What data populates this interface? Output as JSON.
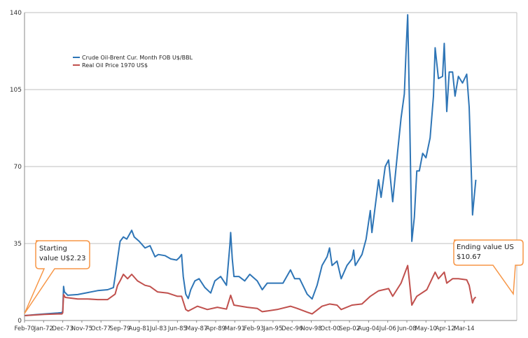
{
  "chart_data": {
    "type": "line",
    "title": "",
    "xlabel": "",
    "ylabel": "",
    "ylim": [
      0,
      140
    ],
    "yticks": [
      0,
      35,
      70,
      105,
      140
    ],
    "grid": true,
    "legend_position": "top-left",
    "x_tick_labels": [
      "Feb-70",
      "Jan-72",
      "Dec-73",
      "Nov-75",
      "Oct-77",
      "Sep-79",
      "Aug-81",
      "Jul-83",
      "Jun-85",
      "May-87",
      "Apr-89",
      "Mar-91",
      "Feb-93",
      "Jan-95",
      "Dec-96",
      "Nov-98",
      "Oct-00",
      "Sep-02",
      "Aug-04",
      "Jul-06",
      "Jun-08",
      "May-10",
      "Apr-12",
      "Mar-14"
    ],
    "series": [
      {
        "name": "Crude Oil-Brent Cur. Month FOB U$/BBL",
        "color": "#2e75b6",
        "points": [
          [
            "1970-02",
            2.23
          ],
          [
            "1971-02",
            2.6
          ],
          [
            "1972-02",
            3.0
          ],
          [
            "1973-06",
            3.4
          ],
          [
            "1973-11",
            3.6
          ],
          [
            "1973-12",
            4.3
          ],
          [
            "1974-01",
            15.5
          ],
          [
            "1974-02",
            13.0
          ],
          [
            "1974-06",
            11.5
          ],
          [
            "1975-06",
            11.8
          ],
          [
            "1976-06",
            12.7
          ],
          [
            "1977-06",
            13.6
          ],
          [
            "1978-06",
            14.0
          ],
          [
            "1979-01",
            15.0
          ],
          [
            "1979-03",
            20.0
          ],
          [
            "1979-06",
            28.0
          ],
          [
            "1979-09",
            36.0
          ],
          [
            "1980-01",
            38.0
          ],
          [
            "1980-05",
            37.0
          ],
          [
            "1980-11",
            41.0
          ],
          [
            "1981-02",
            38.0
          ],
          [
            "1981-08",
            36.0
          ],
          [
            "1982-03",
            33.0
          ],
          [
            "1982-09",
            34.0
          ],
          [
            "1983-03",
            29.0
          ],
          [
            "1983-07",
            30.0
          ],
          [
            "1984-03",
            29.5
          ],
          [
            "1984-10",
            28.0
          ],
          [
            "1985-05",
            27.5
          ],
          [
            "1985-08",
            28.5
          ],
          [
            "1985-11",
            30.0
          ],
          [
            "1986-01",
            20.0
          ],
          [
            "1986-04",
            12.0
          ],
          [
            "1986-07",
            10.0
          ],
          [
            "1986-10",
            14.0
          ],
          [
            "1987-03",
            18.0
          ],
          [
            "1987-08",
            19.0
          ],
          [
            "1988-03",
            15.0
          ],
          [
            "1988-10",
            12.5
          ],
          [
            "1989-03",
            18.0
          ],
          [
            "1989-10",
            20.0
          ],
          [
            "1990-05",
            16.0
          ],
          [
            "1990-09",
            34.0
          ],
          [
            "1990-10",
            40.0
          ],
          [
            "1990-12",
            28.0
          ],
          [
            "1991-02",
            20.0
          ],
          [
            "1991-08",
            20.0
          ],
          [
            "1992-03",
            18.0
          ],
          [
            "1992-09",
            21.0
          ],
          [
            "1993-06",
            18.0
          ],
          [
            "1993-12",
            14.0
          ],
          [
            "1994-06",
            17.0
          ],
          [
            "1995-06",
            17.0
          ],
          [
            "1996-01",
            17.0
          ],
          [
            "1996-10",
            23.0
          ],
          [
            "1997-03",
            19.0
          ],
          [
            "1997-09",
            19.0
          ],
          [
            "1998-06",
            12.0
          ],
          [
            "1998-12",
            9.8
          ],
          [
            "1999-06",
            16.0
          ],
          [
            "1999-12",
            25.0
          ],
          [
            "2000-06",
            29.0
          ],
          [
            "2000-09",
            33.0
          ],
          [
            "2000-12",
            25.0
          ],
          [
            "2001-06",
            27.0
          ],
          [
            "2001-11",
            19.0
          ],
          [
            "2002-06",
            25.0
          ],
          [
            "2002-12",
            28.0
          ],
          [
            "2003-02",
            32.0
          ],
          [
            "2003-04",
            25.0
          ],
          [
            "2003-12",
            30.0
          ],
          [
            "2004-05",
            37.0
          ],
          [
            "2004-10",
            50.0
          ],
          [
            "2004-12",
            40.0
          ],
          [
            "2005-08",
            64.0
          ],
          [
            "2005-11",
            56.0
          ],
          [
            "2006-04",
            70.0
          ],
          [
            "2006-08",
            73.0
          ],
          [
            "2007-01",
            54.0
          ],
          [
            "2007-07",
            77.0
          ],
          [
            "2007-11",
            92.0
          ],
          [
            "2008-03",
            103.0
          ],
          [
            "2008-05",
            122.0
          ],
          [
            "2008-07",
            139.0
          ],
          [
            "2008-09",
            100.0
          ],
          [
            "2008-12",
            36.0
          ],
          [
            "2009-03",
            47.0
          ],
          [
            "2009-06",
            68.0
          ],
          [
            "2009-09",
            68.0
          ],
          [
            "2010-01",
            76.0
          ],
          [
            "2010-05",
            74.0
          ],
          [
            "2010-10",
            83.0
          ],
          [
            "2011-02",
            102.0
          ],
          [
            "2011-04",
            124.0
          ],
          [
            "2011-08",
            110.0
          ],
          [
            "2012-01",
            111.0
          ],
          [
            "2012-03",
            126.0
          ],
          [
            "2012-06",
            95.0
          ],
          [
            "2012-09",
            113.0
          ],
          [
            "2013-01",
            113.0
          ],
          [
            "2013-04",
            102.0
          ],
          [
            "2013-08",
            111.0
          ],
          [
            "2014-01",
            108.0
          ],
          [
            "2014-06",
            112.0
          ],
          [
            "2014-09",
            97.0
          ],
          [
            "2014-12",
            62.0
          ],
          [
            "2015-01",
            48.0
          ],
          [
            "2015-03",
            56.0
          ],
          [
            "2015-05",
            64.0
          ]
        ]
      },
      {
        "name": "Real Oil Price 1970 US$",
        "color": "#c0504d",
        "points": [
          [
            "1970-02",
            2.23
          ],
          [
            "1971-02",
            2.5
          ],
          [
            "1972-02",
            2.8
          ],
          [
            "1973-06",
            3.0
          ],
          [
            "1973-11",
            3.0
          ],
          [
            "1973-12",
            3.5
          ],
          [
            "1974-01",
            11.8
          ],
          [
            "1974-03",
            10.5
          ],
          [
            "1975-06",
            9.8
          ],
          [
            "1976-06",
            9.8
          ],
          [
            "1977-06",
            9.5
          ],
          [
            "1978-06",
            9.5
          ],
          [
            "1979-03",
            12.0
          ],
          [
            "1979-06",
            16.0
          ],
          [
            "1979-09",
            18.0
          ],
          [
            "1980-01",
            21.0
          ],
          [
            "1980-06",
            19.0
          ],
          [
            "1980-11",
            21.0
          ],
          [
            "1981-06",
            18.0
          ],
          [
            "1982-03",
            16.0
          ],
          [
            "1982-09",
            15.5
          ],
          [
            "1983-06",
            13.0
          ],
          [
            "1984-06",
            12.5
          ],
          [
            "1985-06",
            11.0
          ],
          [
            "1985-11",
            11.0
          ],
          [
            "1986-04",
            5.0
          ],
          [
            "1986-07",
            4.3
          ],
          [
            "1987-06",
            6.5
          ],
          [
            "1988-06",
            5.0
          ],
          [
            "1989-06",
            6.0
          ],
          [
            "1990-05",
            5.2
          ],
          [
            "1990-10",
            11.5
          ],
          [
            "1991-02",
            7.0
          ],
          [
            "1992-06",
            6.0
          ],
          [
            "1993-06",
            5.5
          ],
          [
            "1993-12",
            4.0
          ],
          [
            "1995-06",
            5.0
          ],
          [
            "1996-10",
            6.5
          ],
          [
            "1997-06",
            5.5
          ],
          [
            "1998-06",
            3.8
          ],
          [
            "1998-12",
            3.0
          ],
          [
            "1999-12",
            6.5
          ],
          [
            "2000-09",
            7.5
          ],
          [
            "2001-06",
            7.0
          ],
          [
            "2001-11",
            5.0
          ],
          [
            "2002-12",
            7.0
          ],
          [
            "2003-12",
            7.5
          ],
          [
            "2004-10",
            11.0
          ],
          [
            "2005-08",
            13.5
          ],
          [
            "2006-08",
            14.5
          ],
          [
            "2007-01",
            11.0
          ],
          [
            "2007-11",
            17.0
          ],
          [
            "2008-07",
            25.0
          ],
          [
            "2008-09",
            18.0
          ],
          [
            "2008-12",
            7.0
          ],
          [
            "2009-06",
            11.0
          ],
          [
            "2010-06",
            14.0
          ],
          [
            "2011-04",
            22.0
          ],
          [
            "2011-08",
            19.0
          ],
          [
            "2012-03",
            22.0
          ],
          [
            "2012-06",
            17.0
          ],
          [
            "2013-01",
            19.0
          ],
          [
            "2013-08",
            19.0
          ],
          [
            "2014-06",
            18.5
          ],
          [
            "2014-09",
            16.0
          ],
          [
            "2014-12",
            10.0
          ],
          [
            "2015-01",
            8.0
          ],
          [
            "2015-03",
            10.0
          ],
          [
            "2015-05",
            10.67
          ]
        ]
      }
    ],
    "annotations": [
      {
        "name": "starting-callout",
        "lines": [
          "Starting",
          "value U$2.23"
        ]
      },
      {
        "name": "ending-callout",
        "lines": [
          "Ending value US",
          "$10.67"
        ]
      }
    ]
  }
}
